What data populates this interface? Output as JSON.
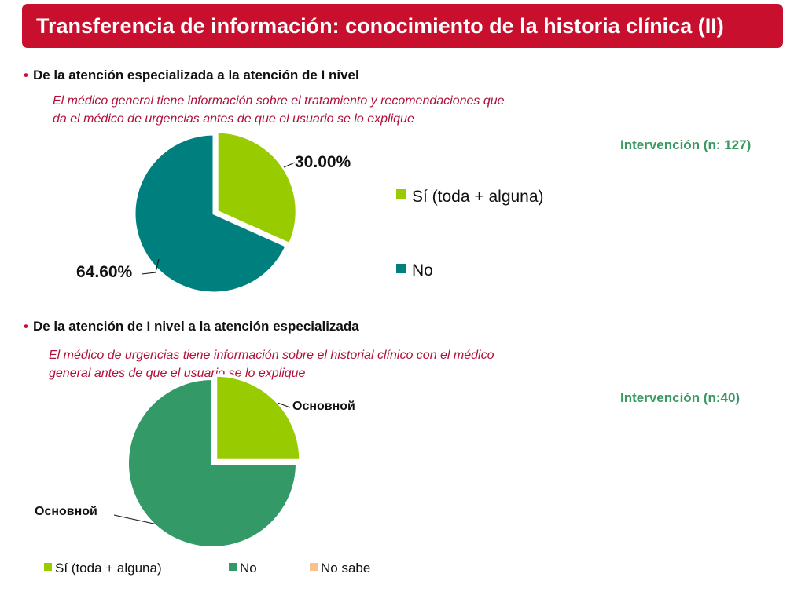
{
  "title": "Transferencia de información: conocimiento de la historia clínica (II)",
  "section1": {
    "heading": "De la atención especializada a la atención de I nivel",
    "description_lines": [
      "El médico general tiene información sobre el tratamiento y recomendaciones que",
      "da el médico de urgencias antes de que el usuario se lo explique"
    ],
    "intervention": "Intervención (n: 127)"
  },
  "section2": {
    "heading": "De la atención de I nivel a la atención especializada",
    "description_lines": [
      "El  médico de urgencias tiene información sobre el historial clínico con el médico",
      "general antes de que el usuario se lo explique"
    ],
    "intervention": "Intervención (n:40)"
  },
  "chart_data": [
    {
      "type": "pie",
      "slices": [
        {
          "label": "Sí (toda + alguna)",
          "value": 30.0,
          "data_label": "30.00%",
          "color": "#99cc00"
        },
        {
          "label": "No",
          "value": 64.6,
          "data_label": "64.60%",
          "color": "#007f7f"
        }
      ],
      "legend": [
        "Sí (toda + alguna)",
        "No"
      ]
    },
    {
      "type": "pie",
      "slices": [
        {
          "label": "Sí (toda + alguna)",
          "value": 25,
          "data_label": "Основной",
          "color": "#99cc00"
        },
        {
          "label": "No",
          "value": 75,
          "data_label": "Основной",
          "color": "#339966"
        },
        {
          "label": "No sabe",
          "value": 0,
          "data_label": "",
          "color": "#fac090"
        }
      ],
      "legend": [
        "Sí (toda + alguna)",
        "No",
        "No sabe"
      ]
    }
  ]
}
